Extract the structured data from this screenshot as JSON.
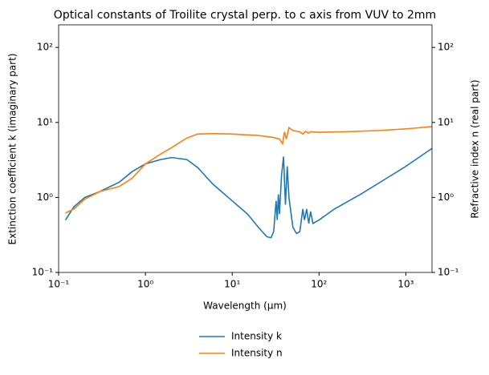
{
  "chart_data": {
    "type": "line",
    "title": "Optical constants of Troilite crystal perp. to c axis from VUV to 2mm",
    "xlabel": "Wavelength (μm)",
    "ylabel": "Extinction coefficient k (imaginary part)",
    "y2label": "Refractive index n (real part)",
    "xscale": "log",
    "yscale": "log",
    "xlim": [
      0.1,
      2000
    ],
    "ylim": [
      0.1,
      200
    ],
    "y2lim": [
      0.1,
      200
    ],
    "xticks": [
      {
        "value": 0.1,
        "label": "10⁻¹"
      },
      {
        "value": 1,
        "label": "10⁰"
      },
      {
        "value": 10,
        "label": "10¹"
      },
      {
        "value": 100,
        "label": "10²"
      },
      {
        "value": 1000,
        "label": "10³"
      }
    ],
    "yticks": [
      {
        "value": 0.1,
        "label": "10⁻¹"
      },
      {
        "value": 1,
        "label": "10⁰"
      },
      {
        "value": 10,
        "label": "10¹"
      },
      {
        "value": 100,
        "label": "10²"
      }
    ],
    "y2ticks": [
      {
        "value": 0.1,
        "label": "10⁻¹"
      },
      {
        "value": 1,
        "label": "10⁰"
      },
      {
        "value": 10,
        "label": "10¹"
      },
      {
        "value": 100,
        "label": "10²"
      }
    ],
    "legend": "bottom",
    "series": [
      {
        "name": "Intensity k",
        "color": "#1f77b4",
        "axis": "y",
        "x": [
          0.12,
          0.15,
          0.2,
          0.3,
          0.5,
          0.7,
          1,
          1.5,
          2,
          3,
          4,
          6,
          10,
          15,
          20,
          25,
          28,
          30,
          32,
          33,
          34,
          35,
          37,
          39,
          41,
          43,
          45,
          50,
          55,
          60,
          65,
          68,
          72,
          76,
          80,
          85,
          100,
          150,
          300,
          600,
          1000,
          2000
        ],
        "values": [
          0.5,
          0.75,
          1.0,
          1.2,
          1.6,
          2.2,
          2.8,
          3.2,
          3.4,
          3.2,
          2.5,
          1.5,
          0.9,
          0.6,
          0.4,
          0.3,
          0.29,
          0.35,
          0.9,
          0.5,
          1.1,
          0.6,
          2.0,
          3.5,
          0.8,
          2.6,
          1.0,
          0.4,
          0.33,
          0.35,
          0.7,
          0.5,
          0.7,
          0.45,
          0.65,
          0.45,
          0.5,
          0.7,
          1.1,
          1.8,
          2.6,
          4.5
        ]
      },
      {
        "name": "Intensity n",
        "color": "#ff7f0e",
        "axis": "y2",
        "x": [
          0.12,
          0.15,
          0.2,
          0.3,
          0.5,
          0.7,
          1,
          1.5,
          2,
          3,
          4,
          6,
          10,
          20,
          30,
          35,
          38,
          40,
          42,
          45,
          50,
          60,
          65,
          70,
          75,
          80,
          100,
          200,
          500,
          1000,
          2000
        ],
        "values": [
          0.62,
          0.7,
          0.95,
          1.2,
          1.4,
          1.8,
          2.8,
          3.8,
          4.6,
          6.2,
          7.0,
          7.1,
          7.0,
          6.7,
          6.3,
          6.0,
          5.2,
          7.5,
          6.0,
          8.5,
          7.8,
          7.5,
          7.0,
          7.6,
          7.2,
          7.5,
          7.4,
          7.5,
          7.8,
          8.2,
          8.8
        ]
      }
    ]
  }
}
